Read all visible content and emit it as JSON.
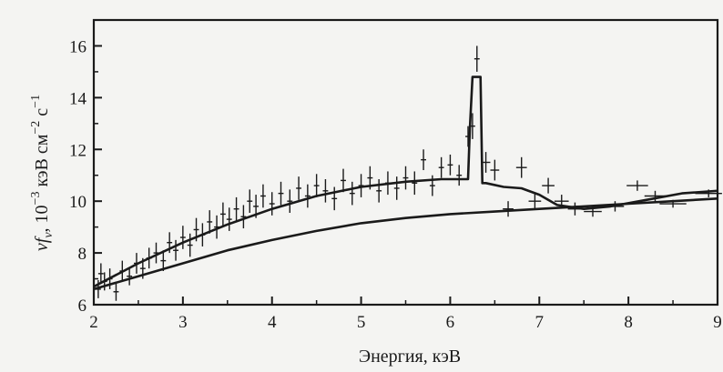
{
  "chart_data": {
    "type": "scatter",
    "title": "",
    "xlabel": "Энергия, кэВ",
    "ylabel_parts": [
      "νf",
      "ν",
      ", 10",
      "−3",
      " кэВ см",
      "−2",
      " с",
      "−1"
    ],
    "xlim": [
      2,
      9
    ],
    "ylim": [
      6,
      17
    ],
    "xticks": [
      2,
      3,
      4,
      5,
      6,
      7,
      8,
      9
    ],
    "yticks": [
      6,
      8,
      10,
      12,
      14,
      16
    ],
    "grid": false,
    "series": [
      {
        "kind": "line",
        "x": [
          2.0,
          2.5,
          3.0,
          3.5,
          4.0,
          4.5,
          5.0,
          5.5,
          5.9,
          6.2,
          6.22,
          6.25,
          6.3,
          6.34,
          6.36,
          6.4,
          6.6,
          6.8,
          7.0,
          7.2,
          7.5,
          7.8,
          8.2,
          8.6,
          9.0
        ],
        "y": [
          6.7,
          7.6,
          8.4,
          9.1,
          9.7,
          10.2,
          10.55,
          10.75,
          10.85,
          10.85,
          12.8,
          14.8,
          14.8,
          14.8,
          10.7,
          10.7,
          10.55,
          10.5,
          10.25,
          9.85,
          9.7,
          9.8,
          10.05,
          10.3,
          10.4
        ]
      },
      {
        "kind": "line",
        "x": [
          2.0,
          2.5,
          3.0,
          3.5,
          4.0,
          4.5,
          5.0,
          5.5,
          6.0,
          6.5,
          7.0,
          7.5,
          8.0,
          8.5,
          9.0
        ],
        "y": [
          6.6,
          7.1,
          7.6,
          8.1,
          8.5,
          8.85,
          9.15,
          9.35,
          9.5,
          9.6,
          9.7,
          9.8,
          9.9,
          10.0,
          10.1
        ]
      },
      {
        "kind": "points",
        "x": [
          2.05,
          2.08,
          2.12,
          2.18,
          2.25,
          2.32,
          2.4,
          2.48,
          2.55,
          2.62,
          2.7,
          2.78,
          2.85,
          2.92,
          3.0,
          3.08,
          3.15,
          3.22,
          3.3,
          3.38,
          3.45,
          3.52,
          3.6,
          3.68,
          3.75,
          3.82,
          3.9,
          4.0,
          4.1,
          4.2,
          4.3,
          4.4,
          4.5,
          4.6,
          4.7,
          4.8,
          4.9,
          5.0,
          5.1,
          5.2,
          5.3,
          5.4,
          5.5,
          5.6,
          5.7,
          5.8,
          5.9,
          6.0,
          6.1,
          6.2,
          6.25,
          6.3,
          6.4,
          6.5,
          6.65,
          6.8,
          6.95,
          7.1,
          7.25,
          7.4,
          7.6,
          7.85,
          8.1,
          8.3,
          8.5,
          8.9
        ],
        "y": [
          6.6,
          7.2,
          6.9,
          7.0,
          6.5,
          7.3,
          7.1,
          7.6,
          7.4,
          7.8,
          8.0,
          7.7,
          8.4,
          8.1,
          8.6,
          8.3,
          8.9,
          8.7,
          9.2,
          9.0,
          9.5,
          9.3,
          9.7,
          9.4,
          10.0,
          9.8,
          10.2,
          9.9,
          10.3,
          10.0,
          10.5,
          10.2,
          10.6,
          10.4,
          10.1,
          10.8,
          10.3,
          10.6,
          10.9,
          10.4,
          10.7,
          10.5,
          10.9,
          10.7,
          11.6,
          10.6,
          11.3,
          11.4,
          11.0,
          12.5,
          12.9,
          15.5,
          11.5,
          11.2,
          9.7,
          11.3,
          10.0,
          10.6,
          10.0,
          9.7,
          9.6,
          9.8,
          10.6,
          10.2,
          9.9,
          10.3
        ],
        "xerr": [
          0.03,
          0.03,
          0.03,
          0.03,
          0.03,
          0.03,
          0.03,
          0.03,
          0.03,
          0.03,
          0.03,
          0.03,
          0.03,
          0.03,
          0.03,
          0.03,
          0.03,
          0.03,
          0.03,
          0.03,
          0.03,
          0.03,
          0.03,
          0.03,
          0.03,
          0.03,
          0.03,
          0.03,
          0.03,
          0.03,
          0.03,
          0.03,
          0.03,
          0.03,
          0.03,
          0.03,
          0.03,
          0.03,
          0.03,
          0.03,
          0.03,
          0.03,
          0.03,
          0.03,
          0.03,
          0.03,
          0.03,
          0.03,
          0.03,
          0.03,
          0.03,
          0.03,
          0.05,
          0.05,
          0.06,
          0.06,
          0.07,
          0.07,
          0.08,
          0.08,
          0.1,
          0.1,
          0.12,
          0.12,
          0.15,
          0.15
        ],
        "yerr": [
          0.35,
          0.4,
          0.35,
          0.4,
          0.35,
          0.4,
          0.35,
          0.4,
          0.4,
          0.4,
          0.4,
          0.4,
          0.4,
          0.4,
          0.45,
          0.45,
          0.45,
          0.45,
          0.45,
          0.45,
          0.45,
          0.45,
          0.45,
          0.45,
          0.45,
          0.45,
          0.45,
          0.45,
          0.45,
          0.45,
          0.45,
          0.45,
          0.45,
          0.45,
          0.45,
          0.45,
          0.45,
          0.45,
          0.45,
          0.45,
          0.45,
          0.45,
          0.45,
          0.45,
          0.4,
          0.4,
          0.4,
          0.4,
          0.4,
          0.4,
          0.5,
          0.5,
          0.4,
          0.4,
          0.3,
          0.4,
          0.3,
          0.3,
          0.25,
          0.25,
          0.2,
          0.2,
          0.2,
          0.2,
          0.15,
          0.15
        ]
      }
    ]
  }
}
